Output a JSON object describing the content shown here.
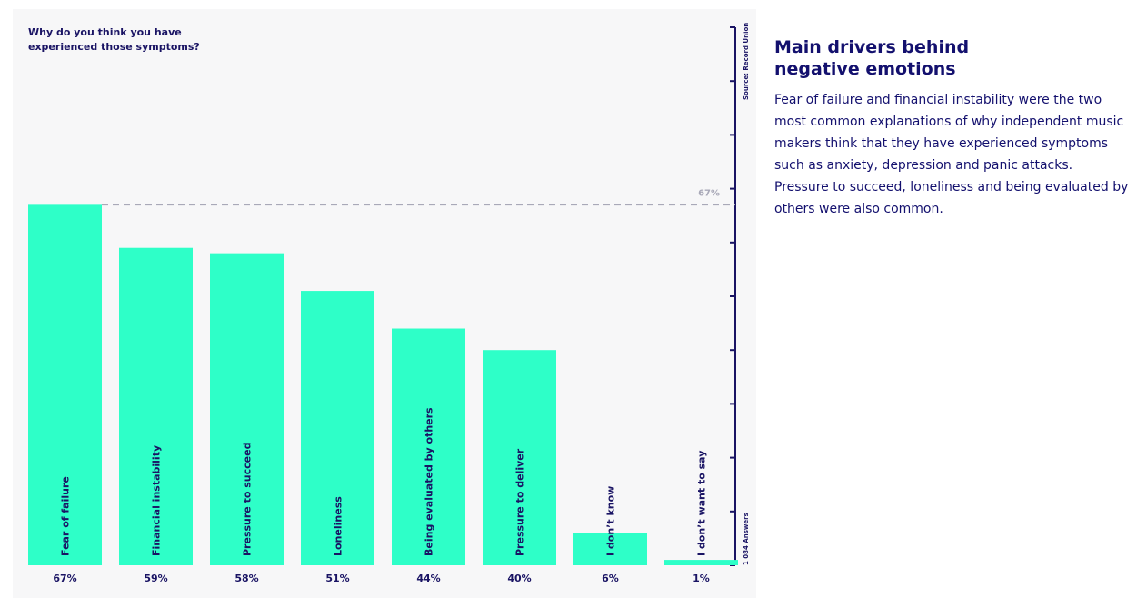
{
  "chart_data": {
    "type": "bar",
    "title": "Why do you think you have experienced those symptoms?",
    "categories": [
      "Fear of failure",
      "Financial instability",
      "Pressure to succeed",
      "Loneliness",
      "Being evaluated by others",
      "Pressure to deliver",
      "I don’t know",
      "I don’t want to say"
    ],
    "values": [
      67,
      59,
      58,
      51,
      44,
      40,
      6,
      1
    ],
    "value_labels": [
      "67%",
      "59%",
      "58%",
      "51%",
      "44%",
      "40%",
      "6%",
      "1%"
    ],
    "unit": "%",
    "ylim": [
      0,
      100
    ],
    "reference_line": {
      "value": 67,
      "label": "67%"
    },
    "source": "Source: Record Union",
    "answers_note": "1 084 Answers",
    "grid": false,
    "colors": {
      "bar": "#2effc8",
      "text": "#1a1464",
      "axis": "#1a1464",
      "reference": "#a9a9b8"
    }
  },
  "sidebar": {
    "title": "Main drivers behind negative emotions",
    "text": "Fear of failure and financial instability were the two most common explanations of why independent music makers think that they have experienced symptoms such as anxiety, depression and panic attacks. Pressure to succeed, loneliness and being evaluated by others were also common."
  }
}
